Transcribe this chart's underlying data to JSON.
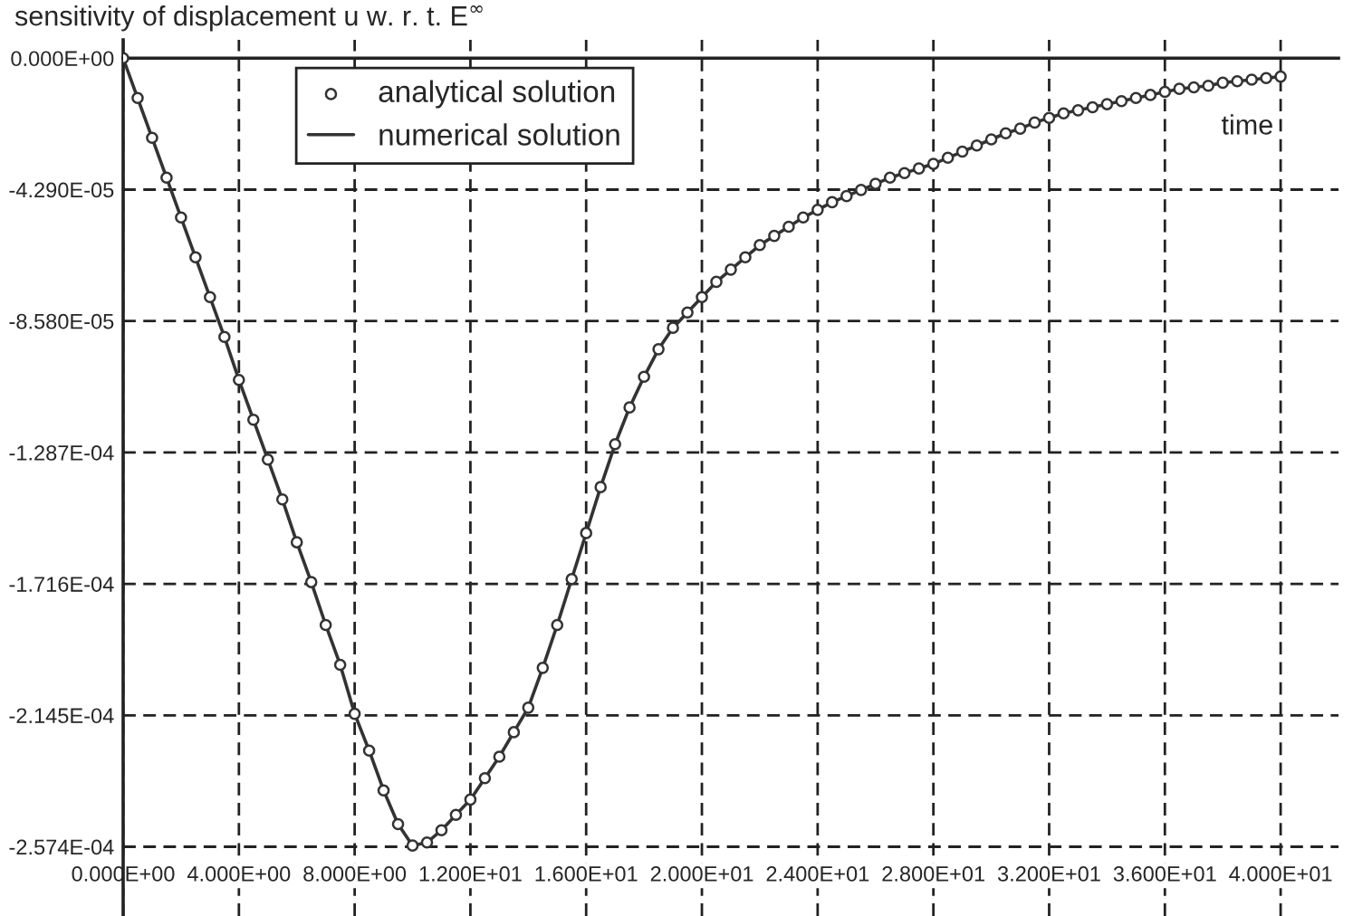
{
  "chart_data": {
    "type": "line",
    "title": "sensitivity of displacement u w. r. t. E$^{∞}$",
    "xlabel": "time",
    "x": [
      0,
      0.5,
      1,
      1.5,
      2,
      2.5,
      3,
      3.5,
      4,
      4.5,
      5,
      5.5,
      6,
      6.5,
      7,
      7.5,
      8,
      8.5,
      9,
      9.5,
      10,
      10.5,
      11,
      11.5,
      12,
      12.5,
      13,
      13.5,
      14,
      14.5,
      15,
      15.5,
      16,
      16.5,
      17,
      17.5,
      18,
      18.5,
      19,
      19.5,
      20,
      20.5,
      21,
      21.5,
      22,
      22.5,
      23,
      23.5,
      24,
      24.5,
      25,
      25.5,
      26,
      26.5,
      27,
      27.5,
      28,
      28.5,
      29,
      29.5,
      30,
      30.5,
      31,
      31.5,
      32,
      32.5,
      33,
      33.5,
      34,
      34.5,
      35,
      35.5,
      36,
      36.5,
      37,
      37.5,
      38,
      38.5,
      39,
      39.5,
      40
    ],
    "series": [
      {
        "name": "analytical solution",
        "type": "scatter",
        "marker": "circle",
        "color": "#333333",
        "values": [
          0,
          -1.3e-05,
          -2.6e-05,
          -3.9e-05,
          -5.2e-05,
          -6.5e-05,
          -7.8e-05,
          -9.1e-05,
          -0.000105,
          -0.000118,
          -0.000131,
          -0.000144,
          -0.000158,
          -0.000171,
          -0.000185,
          -0.000198,
          -0.000214,
          -0.000226,
          -0.000239,
          -0.00025,
          -0.000257,
          -0.000256,
          -0.000252,
          -0.000247,
          -0.000242,
          -0.000235,
          -0.000228,
          -0.00022,
          -0.000212,
          -0.000199,
          -0.000185,
          -0.00017,
          -0.000155,
          -0.00014,
          -0.000126,
          -0.000114,
          -0.000104,
          -9.5e-05,
          -8.8e-05,
          -8.3e-05,
          -7.8e-05,
          -7.3e-05,
          -6.9e-05,
          -6.5e-05,
          -6.1e-05,
          -5.8e-05,
          -5.5e-05,
          -5.2e-05,
          -4.95e-05,
          -4.7e-05,
          -4.5e-05,
          -4.3e-05,
          -4.1e-05,
          -3.9e-05,
          -3.75e-05,
          -3.6e-05,
          -3.45e-05,
          -3.25e-05,
          -3.05e-05,
          -2.85e-05,
          -2.65e-05,
          -2.45e-05,
          -2.3e-05,
          -2.1e-05,
          -1.95e-05,
          -1.8e-05,
          -1.7e-05,
          -1.6e-05,
          -1.5e-05,
          -1.4e-05,
          -1.3e-05,
          -1.2e-05,
          -1.1e-05,
          -1e-05,
          -9.5e-06,
          -9e-06,
          -8e-06,
          -7.5e-06,
          -7e-06,
          -6.5e-06,
          -6e-06
        ]
      },
      {
        "name": "numerical solution",
        "marker": "none",
        "color": "#333333",
        "values": [
          0,
          -1.3e-05,
          -2.6e-05,
          -3.9e-05,
          -5.2e-05,
          -6.5e-05,
          -7.8e-05,
          -9.1e-05,
          -0.000105,
          -0.000118,
          -0.000131,
          -0.000144,
          -0.000158,
          -0.000171,
          -0.000185,
          -0.000198,
          -0.000214,
          -0.000226,
          -0.000239,
          -0.00025,
          -0.000257,
          -0.000256,
          -0.000252,
          -0.000247,
          -0.000242,
          -0.000235,
          -0.000228,
          -0.00022,
          -0.000212,
          -0.000199,
          -0.000185,
          -0.00017,
          -0.000155,
          -0.00014,
          -0.000126,
          -0.000114,
          -0.000104,
          -9.5e-05,
          -8.8e-05,
          -8.3e-05,
          -7.8e-05,
          -7.3e-05,
          -6.9e-05,
          -6.5e-05,
          -6.1e-05,
          -5.8e-05,
          -5.5e-05,
          -5.2e-05,
          -4.95e-05,
          -4.7e-05,
          -4.5e-05,
          -4.3e-05,
          -4.1e-05,
          -3.9e-05,
          -3.75e-05,
          -3.6e-05,
          -3.45e-05,
          -3.25e-05,
          -3.05e-05,
          -2.85e-05,
          -2.65e-05,
          -2.45e-05,
          -2.3e-05,
          -2.1e-05,
          -1.95e-05,
          -1.8e-05,
          -1.7e-05,
          -1.6e-05,
          -1.5e-05,
          -1.4e-05,
          -1.3e-05,
          -1.2e-05,
          -1.1e-05,
          -1e-05,
          -9.5e-06,
          -9e-06,
          -8e-06,
          -7.5e-06,
          -7e-06,
          -6.5e-06,
          -6e-06
        ]
      }
    ],
    "xlim": [
      0,
      42
    ],
    "ylim": [
      -0.00028,
      6e-06
    ],
    "xticks": [
      {
        "value": 0,
        "label": "0.000E+00"
      },
      {
        "value": 4,
        "label": "4.000E+00"
      },
      {
        "value": 8,
        "label": "8.000E+00"
      },
      {
        "value": 12,
        "label": "1.200E+01"
      },
      {
        "value": 16,
        "label": "1.600E+01"
      },
      {
        "value": 20,
        "label": "2.000E+01"
      },
      {
        "value": 24,
        "label": "2.400E+01"
      },
      {
        "value": 28,
        "label": "2.800E+01"
      },
      {
        "value": 32,
        "label": "3.200E+01"
      },
      {
        "value": 36,
        "label": "3.600E+01"
      },
      {
        "value": 40,
        "label": "4.000E+01"
      }
    ],
    "yticks": [
      {
        "value": 0,
        "label": "0.000E+00"
      },
      {
        "value": -4.29e-05,
        "label": "-4.290E-05"
      },
      {
        "value": -8.58e-05,
        "label": "-8.580E-05"
      },
      {
        "value": -0.0001287,
        "label": "-1.287E-04"
      },
      {
        "value": -0.0001716,
        "label": "-1.716E-04"
      },
      {
        "value": -0.0002145,
        "label": "-2.145E-04"
      },
      {
        "value": -0.0002574,
        "label": "-2.574E-04"
      }
    ],
    "grid": true,
    "legend": "top left",
    "line_style": "solid"
  }
}
